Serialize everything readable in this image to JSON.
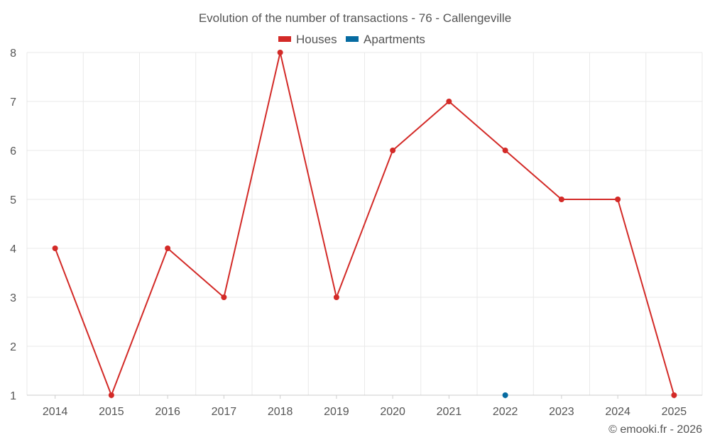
{
  "chart_data": {
    "type": "line",
    "title": "Evolution of the number of transactions - 76 - Callengeville",
    "credit": "© emooki.fr - 2026",
    "categories": [
      "2014",
      "2015",
      "2016",
      "2017",
      "2018",
      "2019",
      "2020",
      "2021",
      "2022",
      "2023",
      "2024",
      "2025"
    ],
    "ylim": [
      1,
      8
    ],
    "yticks": [
      1,
      2,
      3,
      4,
      5,
      6,
      7,
      8
    ],
    "grid": true,
    "legend_position": "top-center",
    "series": [
      {
        "name": "Houses",
        "color": "#d32a27",
        "values": [
          4,
          1,
          4,
          3,
          8,
          3,
          6,
          7,
          6,
          5,
          5,
          1
        ]
      },
      {
        "name": "Apartments",
        "color": "#066ba1",
        "values": [
          null,
          null,
          null,
          null,
          null,
          null,
          null,
          null,
          1,
          null,
          null,
          null
        ]
      }
    ]
  }
}
